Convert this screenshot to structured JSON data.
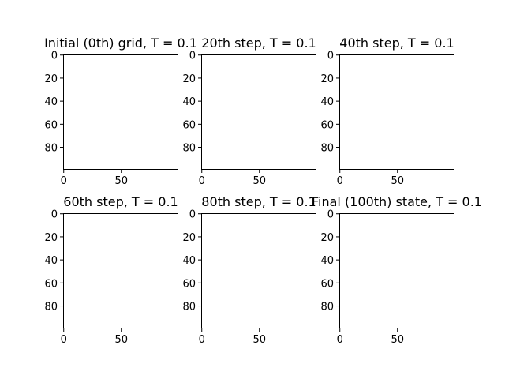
{
  "figure": {
    "background": "#ffffff",
    "image_background": "#ffffff",
    "frame_color": "#000000"
  },
  "chart_data": [
    {
      "type": "heatmap",
      "title": "Initial (0th) grid, T = 0.1",
      "xlim": [
        0,
        99
      ],
      "ylim": [
        99,
        0
      ],
      "y_inverted": true,
      "xticks": [
        "0",
        "50"
      ],
      "xtick_values": [
        0,
        50
      ],
      "yticks": [
        "0",
        "20",
        "40",
        "60",
        "80"
      ],
      "ytick_values": [
        0,
        20,
        40,
        60,
        80
      ],
      "grid": false
    },
    {
      "type": "heatmap",
      "title": "20th step, T = 0.1",
      "xlim": [
        0,
        99
      ],
      "ylim": [
        99,
        0
      ],
      "y_inverted": true,
      "xticks": [
        "0",
        "50"
      ],
      "xtick_values": [
        0,
        50
      ],
      "yticks": [
        "0",
        "20",
        "40",
        "60",
        "80"
      ],
      "ytick_values": [
        0,
        20,
        40,
        60,
        80
      ],
      "grid": false
    },
    {
      "type": "heatmap",
      "title": "40th step, T = 0.1",
      "xlim": [
        0,
        99
      ],
      "ylim": [
        99,
        0
      ],
      "y_inverted": true,
      "xticks": [
        "0",
        "50"
      ],
      "xtick_values": [
        0,
        50
      ],
      "yticks": [
        "0",
        "20",
        "40",
        "60",
        "80"
      ],
      "ytick_values": [
        0,
        20,
        40,
        60,
        80
      ],
      "grid": false
    },
    {
      "type": "heatmap",
      "title": "60th step, T = 0.1",
      "xlim": [
        0,
        99
      ],
      "ylim": [
        99,
        0
      ],
      "y_inverted": true,
      "xticks": [
        "0",
        "50"
      ],
      "xtick_values": [
        0,
        50
      ],
      "yticks": [
        "0",
        "20",
        "40",
        "60",
        "80"
      ],
      "ytick_values": [
        0,
        20,
        40,
        60,
        80
      ],
      "grid": false
    },
    {
      "type": "heatmap",
      "title": "80th step, T = 0.1",
      "xlim": [
        0,
        99
      ],
      "ylim": [
        99,
        0
      ],
      "y_inverted": true,
      "xticks": [
        "0",
        "50"
      ],
      "xtick_values": [
        0,
        50
      ],
      "yticks": [
        "0",
        "20",
        "40",
        "60",
        "80"
      ],
      "ytick_values": [
        0,
        20,
        40,
        60,
        80
      ],
      "grid": false
    },
    {
      "type": "heatmap",
      "title": "Final (100th) state, T = 0.1",
      "xlim": [
        0,
        99
      ],
      "ylim": [
        99,
        0
      ],
      "y_inverted": true,
      "xticks": [
        "0",
        "50"
      ],
      "xtick_values": [
        0,
        50
      ],
      "yticks": [
        "0",
        "20",
        "40",
        "60",
        "80"
      ],
      "ytick_values": [
        0,
        20,
        40,
        60,
        80
      ],
      "grid": false
    }
  ]
}
